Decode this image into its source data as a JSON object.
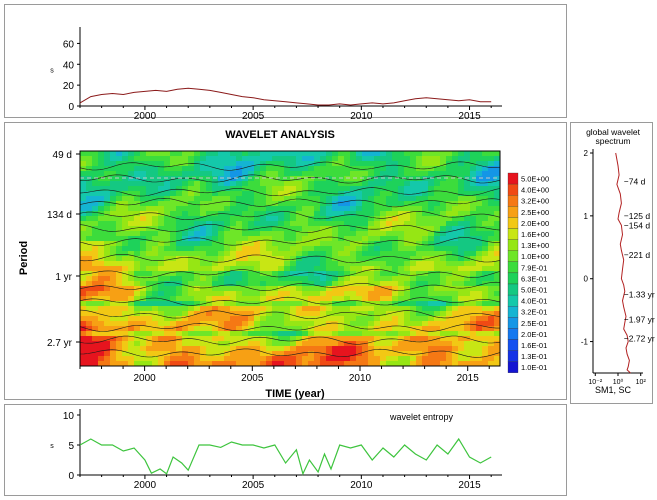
{
  "colors": {
    "series_top": "#8b1a1a",
    "series_bottom": "#3ec43e",
    "contour_line": "#1a1a1a",
    "global_spectrum_line": "#b22222"
  },
  "chart_data": [
    {
      "type": "line",
      "title": "",
      "ylabel": "s",
      "xlim": [
        1997,
        2016.5
      ],
      "ylim": [
        0,
        70
      ],
      "yticks": [
        "0",
        "20",
        "40",
        "60"
      ],
      "xticks": [
        "2000",
        "2005",
        "2010",
        "2015"
      ],
      "series": [
        {
          "x": [
            1997.0,
            1997.5,
            1998.0,
            1998.5,
            1999.0,
            1999.5,
            2000.0,
            2000.5,
            2001.0,
            2001.5,
            2002.0,
            2002.5,
            2003.0,
            2003.5,
            2004.0,
            2004.5,
            2005.0,
            2005.5,
            2006.0,
            2006.5,
            2007.0,
            2007.5,
            2008.0,
            2008.5,
            2009.0,
            2009.5,
            2010.0,
            2010.5,
            2011.0,
            2011.5,
            2012.0,
            2012.5,
            2013.0,
            2013.5,
            2014.0,
            2014.5,
            2015.0,
            2015.5,
            2016.0
          ],
          "y": [
            3,
            9,
            11,
            12,
            11,
            13,
            14,
            15,
            14,
            16,
            17,
            16,
            15,
            13,
            11,
            9,
            8,
            6,
            5,
            4,
            3,
            2,
            1,
            1,
            2,
            1,
            2,
            3,
            2,
            3,
            5,
            7,
            8,
            7,
            6,
            5,
            6,
            4,
            4
          ]
        }
      ]
    },
    {
      "type": "heatmap",
      "title": "WAVELET ANALYSIS",
      "xlabel": "TIME (year)",
      "ylabel": "Period",
      "xlim": [
        1997,
        2016.5
      ],
      "xticks": [
        "2000",
        "2005",
        "2010",
        "2015"
      ],
      "period_ticks": [
        "49 d",
        "134 d",
        "1 yr",
        "2.7 yr"
      ],
      "legend_levels": [
        "5.0E+00",
        "4.0E+00",
        "3.2E+00",
        "2.5E+00",
        "2.0E+00",
        "1.6E+00",
        "1.3E+00",
        "1.0E+00",
        "7.9E-01",
        "6.3E-01",
        "5.0E-01",
        "4.0E-01",
        "3.2E-01",
        "2.5E-01",
        "2.0E-01",
        "1.6E-01",
        "1.3E-01",
        "1.0E-01"
      ],
      "legend_colors": [
        "#e6141e",
        "#f04a14",
        "#f57814",
        "#f7a014",
        "#f2c814",
        "#c8e614",
        "#96e614",
        "#6ee628",
        "#3cdc3c",
        "#1ed25a",
        "#14c882",
        "#14c8aa",
        "#14b4d2",
        "#1496e6",
        "#1478f0",
        "#1450f0",
        "#1432e6",
        "#1414d2"
      ]
    },
    {
      "type": "line",
      "title": "global wavelet spectrum",
      "xlabel": "SM1, SC",
      "xticks": [
        "10⁻²",
        "10⁰",
        "10²"
      ],
      "yticks": [
        "2",
        "1",
        "0",
        "-1"
      ],
      "ylim": [
        -1.5,
        2
      ],
      "annotations": [
        "74 d",
        "125 d",
        "154 d",
        "221 d",
        "1.33 yr",
        "1.97 yr",
        "2.72 yr"
      ],
      "series": [
        {
          "x": [
            -0.2,
            0.0,
            0.1,
            -0.1,
            0.2,
            0.3,
            0.1,
            0.0,
            0.3,
            0.4,
            0.2,
            0.3,
            0.5,
            0.4,
            0.3,
            0.5,
            0.6,
            0.4,
            0.5,
            0.7,
            0.6,
            0.5,
            0.8,
            0.9,
            0.7,
            0.8,
            1.0,
            0.9,
            0.8,
            1.1
          ],
          "y": [
            2.0,
            1.8,
            1.65,
            1.5,
            1.35,
            1.2,
            1.05,
            0.95,
            0.85,
            0.7,
            0.55,
            0.45,
            0.3,
            0.15,
            0.0,
            -0.1,
            -0.2,
            -0.35,
            -0.45,
            -0.6,
            -0.7,
            -0.8,
            -0.9,
            -1.0,
            -1.1,
            -1.2,
            -1.3,
            -1.4,
            -1.45,
            -1.5
          ]
        }
      ]
    },
    {
      "type": "line",
      "title": "wavelet entropy",
      "ylabel": "s",
      "xlim": [
        1997,
        2016.5
      ],
      "ylim": [
        0,
        10
      ],
      "yticks": [
        "0",
        "5",
        "10"
      ],
      "xticks": [
        "2000",
        "2005",
        "2010",
        "2015"
      ],
      "series": [
        {
          "x": [
            1997.0,
            1997.5,
            1998.0,
            1998.5,
            1999.0,
            1999.5,
            2000.0,
            2000.3,
            2000.7,
            2001.0,
            2001.3,
            2001.7,
            2002.0,
            2002.5,
            2003.0,
            2003.5,
            2004.0,
            2004.5,
            2005.0,
            2005.5,
            2006.0,
            2006.5,
            2007.0,
            2007.3,
            2007.6,
            2008.0,
            2008.3,
            2008.6,
            2009.0,
            2009.5,
            2010.0,
            2010.5,
            2011.0,
            2011.5,
            2012.0,
            2012.5,
            2013.0,
            2013.5,
            2014.0,
            2014.5,
            2015.0,
            2015.5,
            2016.0
          ],
          "y": [
            5,
            6,
            5,
            5,
            4,
            4.5,
            2.5,
            0.3,
            1,
            0.2,
            3,
            2,
            0.8,
            5,
            5,
            4.6,
            5.5,
            5,
            5,
            4.5,
            5,
            2,
            4.2,
            0.2,
            2.5,
            0.5,
            3.5,
            1,
            5,
            4.5,
            5,
            2.5,
            4.5,
            3,
            5,
            3.5,
            2.5,
            5,
            3.5,
            6,
            3,
            2,
            3
          ]
        }
      ]
    }
  ]
}
